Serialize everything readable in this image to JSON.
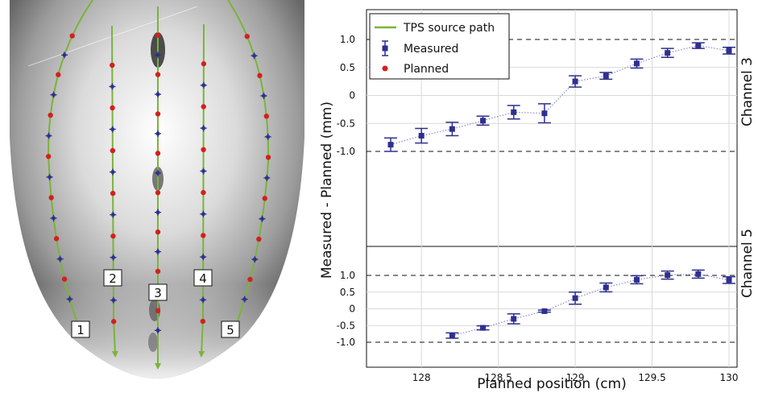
{
  "left_panel": {
    "channel_labels": [
      "1",
      "2",
      "3",
      "4",
      "5"
    ]
  },
  "legend": {
    "path": "TPS source path",
    "measured": "Measured",
    "planned": "Planned"
  },
  "colors": {
    "path": "#7ab33a",
    "measured": "#2f2f8f",
    "planned": "#d3201f",
    "dotted_line": "#8a8ad0"
  },
  "chart_data": [
    {
      "type": "scatter",
      "title": "",
      "channel_label": "Channel 3",
      "xlabel": "Planned position (cm)",
      "ylabel": "Measured - Planned (mm)",
      "xlim": [
        127.7,
        130.1
      ],
      "ylim": [
        -1.4,
        1.4
      ],
      "yticks": [
        -1.0,
        -0.5,
        0,
        0.5,
        1.0
      ],
      "ytick_labels": [
        "-1.0",
        "-0.5",
        "0",
        "0.5",
        "1.0"
      ],
      "reference_lines": [
        1.0,
        -1.0
      ],
      "grid": true,
      "series": [
        {
          "name": "Measured",
          "x": [
            127.8,
            128.0,
            128.2,
            128.4,
            128.6,
            128.8,
            129.0,
            129.2,
            129.4,
            129.6,
            129.8,
            130.0
          ],
          "y": [
            -0.88,
            -0.72,
            -0.6,
            -0.45,
            -0.3,
            -0.32,
            0.25,
            0.35,
            0.57,
            0.76,
            0.89,
            0.8
          ],
          "err": [
            0.12,
            0.13,
            0.12,
            0.08,
            0.12,
            0.17,
            0.1,
            0.06,
            0.08,
            0.08,
            0.05,
            0.06
          ]
        }
      ]
    },
    {
      "type": "scatter",
      "title": "",
      "channel_label": "Channel 5",
      "xlabel": "Planned position (cm)",
      "ylabel": "Measured - Planned (mm)",
      "xlim": [
        127.7,
        130.1
      ],
      "ylim": [
        -1.4,
        1.4
      ],
      "yticks": [
        -1.0,
        -0.5,
        0,
        0.5,
        1.0
      ],
      "ytick_labels": [
        "-1.0",
        "-0.5",
        "0",
        "0.5",
        "1.0"
      ],
      "xticks": [
        128,
        128.5,
        129,
        129.5,
        130
      ],
      "xtick_labels": [
        "128",
        "128.5",
        "129",
        "129.5",
        "130"
      ],
      "reference_lines": [
        1.0,
        -1.0
      ],
      "grid": true,
      "series": [
        {
          "name": "Measured",
          "x": [
            128.2,
            128.4,
            128.6,
            128.8,
            129.0,
            129.2,
            129.4,
            129.6,
            129.8,
            130.0
          ],
          "y": [
            -0.8,
            -0.57,
            -0.3,
            -0.07,
            0.32,
            0.64,
            0.87,
            1.01,
            1.04,
            0.86
          ],
          "err": [
            0.08,
            0.06,
            0.15,
            0.03,
            0.18,
            0.13,
            0.12,
            0.12,
            0.12,
            0.1
          ]
        }
      ]
    }
  ]
}
